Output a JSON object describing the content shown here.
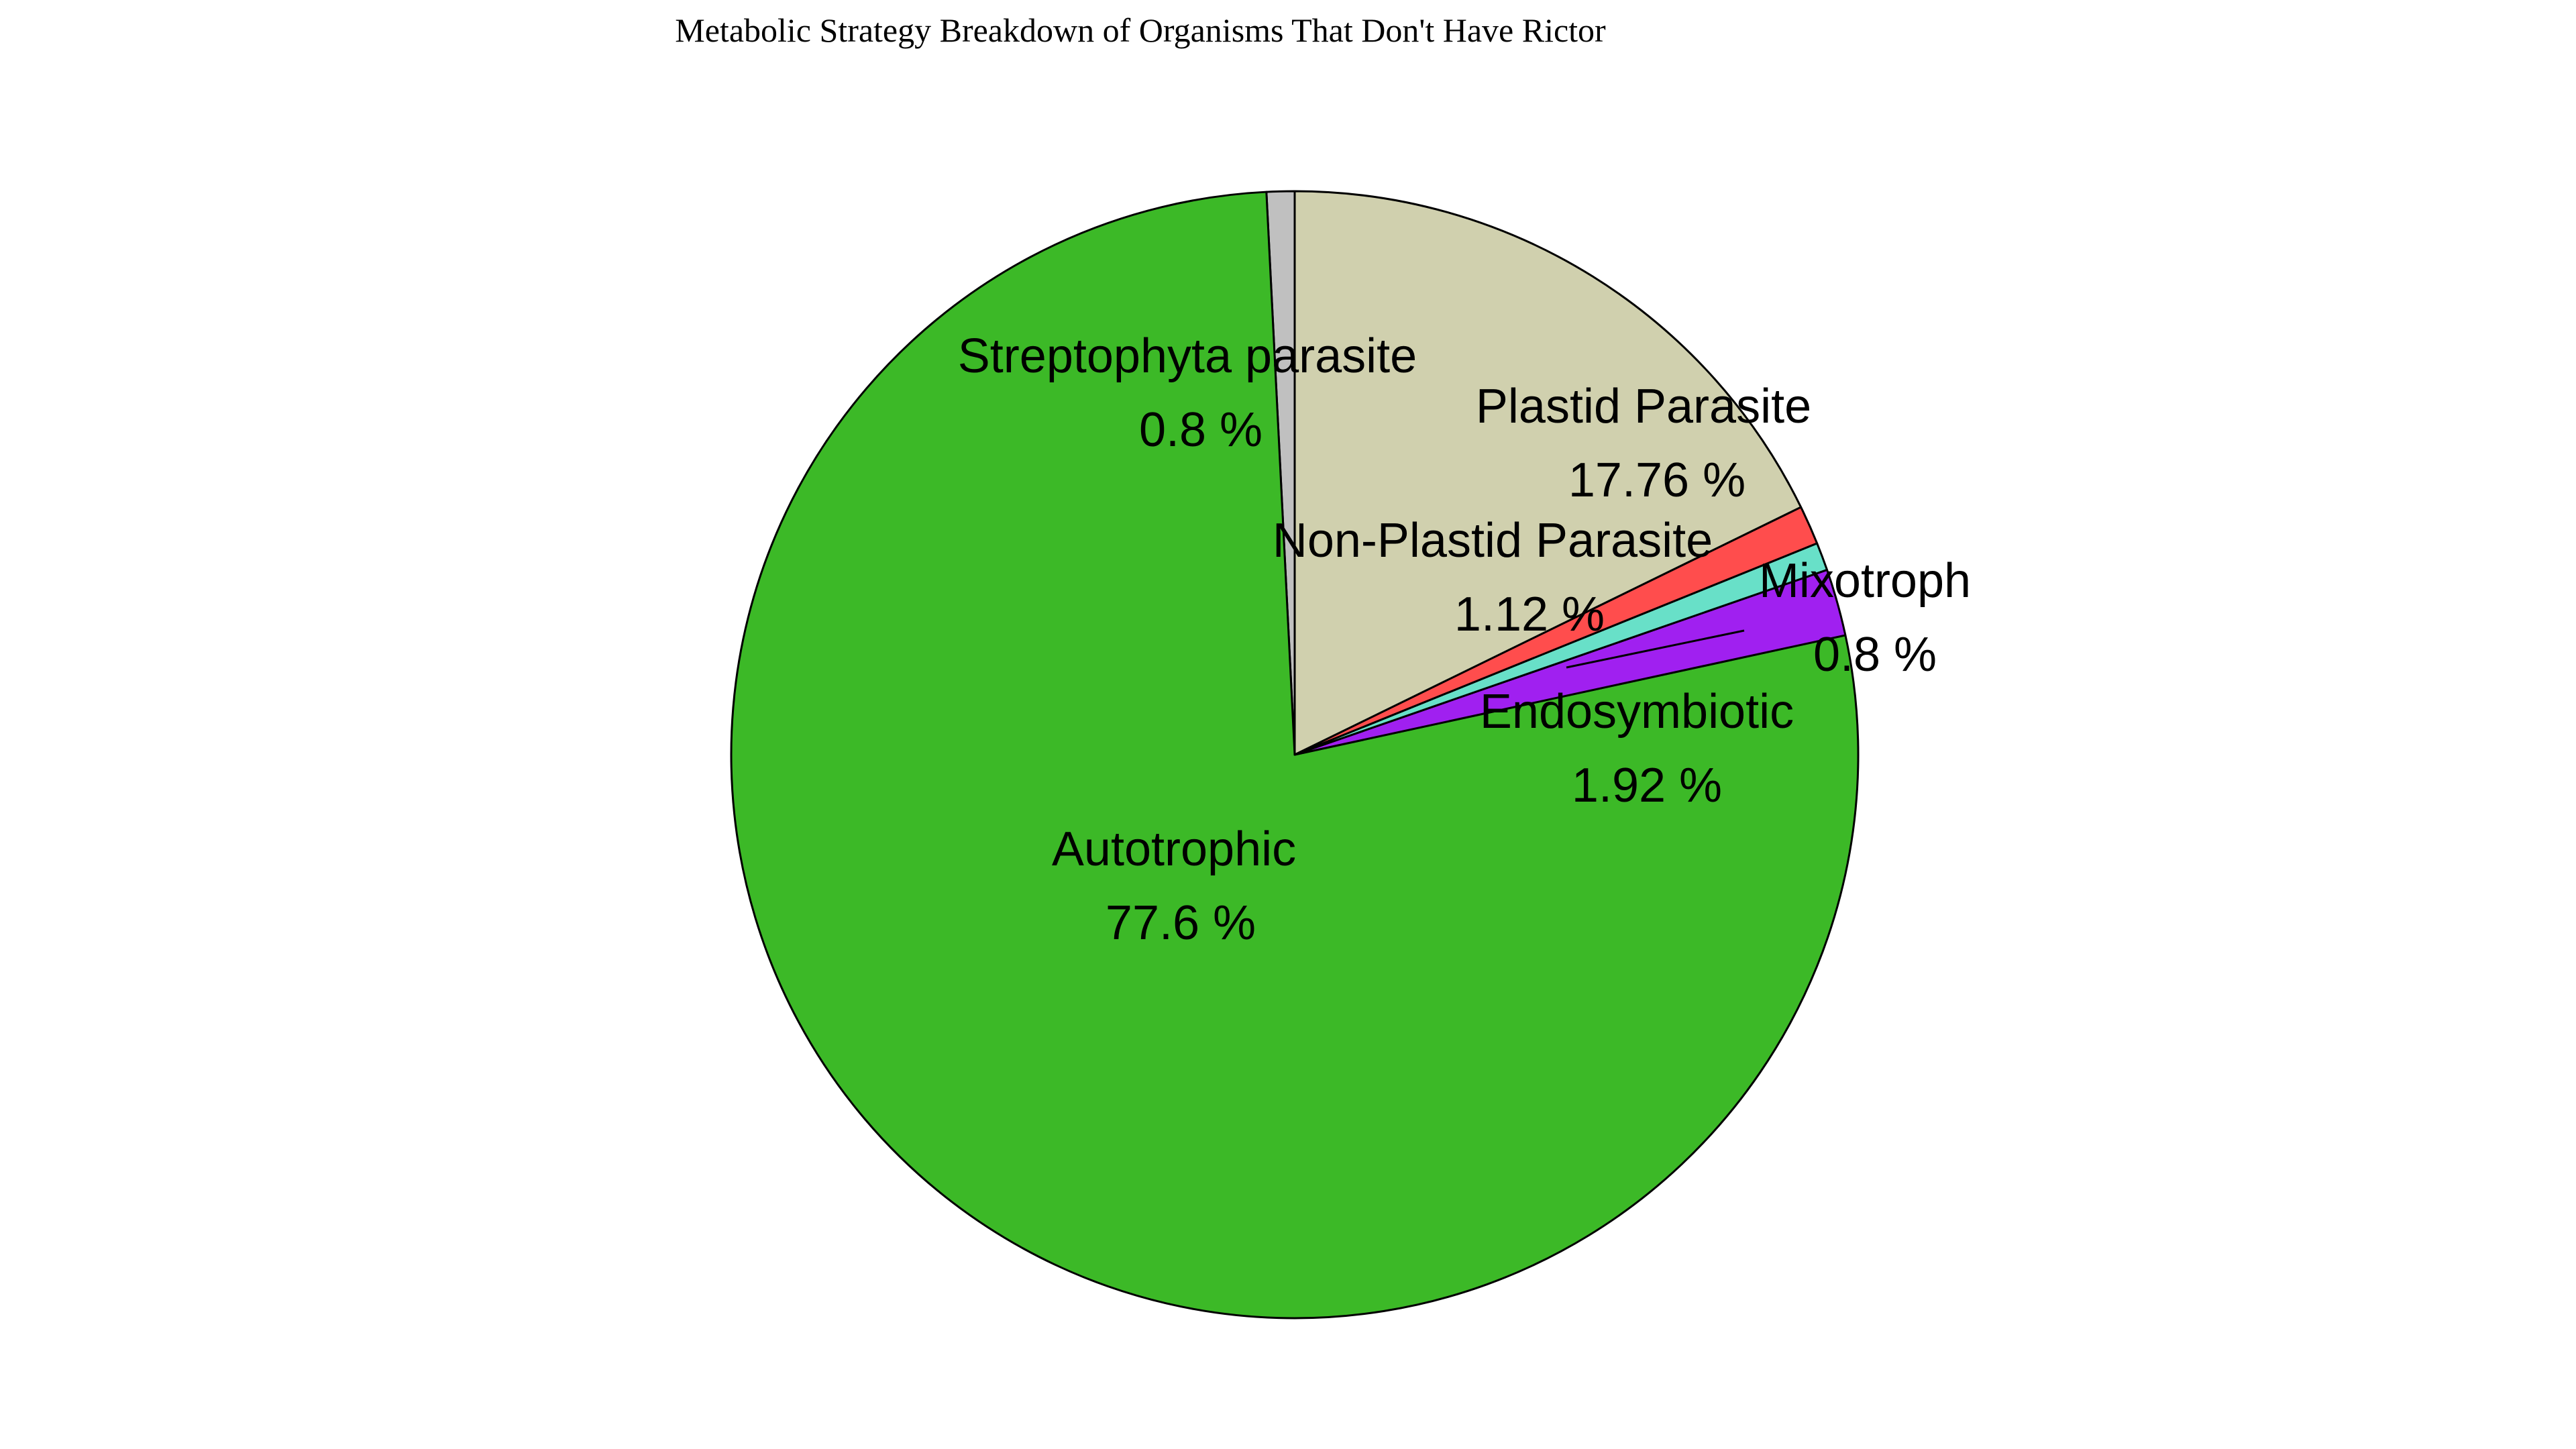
{
  "chart_data": {
    "type": "pie",
    "title": "Metabolic Strategy Breakdown of Organisms That Don't Have Rictor",
    "start_angle_deg": 90,
    "direction": "counterclockwise",
    "slices": [
      {
        "label": "Streptophyta parasite",
        "value": 0.8,
        "pct_text": "0.8 %",
        "color": "#c0c0c0"
      },
      {
        "label": "Autotrophic",
        "value": 77.6,
        "pct_text": "77.6 %",
        "color": "#3cb927"
      },
      {
        "label": "Endosymbiotic",
        "value": 1.92,
        "pct_text": "1.92 %",
        "color": "#a020f0"
      },
      {
        "label": "Mixotroph",
        "value": 0.8,
        "pct_text": "0.8 %",
        "color": "#68e0c8"
      },
      {
        "label": "Non-Plastid Parasite",
        "value": 1.12,
        "pct_text": "1.12 %",
        "color": "#ff4d4d"
      },
      {
        "label": "Plastid Parasite",
        "value": 17.76,
        "pct_text": "17.76 %",
        "color": "#d0d0ae"
      }
    ],
    "edge_color": "#000000"
  }
}
